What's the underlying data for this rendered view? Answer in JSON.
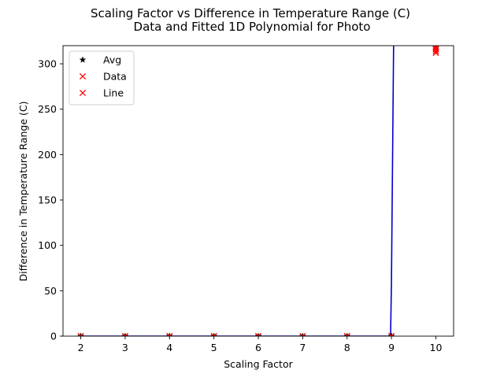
{
  "chart_data": {
    "type": "line",
    "title": "Scaling Factor vs Difference in Temperature Range (C)",
    "subtitle": "Data and Fitted 1D Polynomial for Photo",
    "xlabel": "Scaling Factor",
    "ylabel": "Difference in Temperature Range (C)",
    "xlim": [
      1.6,
      10.4
    ],
    "ylim": [
      0,
      320
    ],
    "xticks": [
      2,
      3,
      4,
      5,
      6,
      7,
      8,
      9,
      10
    ],
    "yticks": [
      0,
      50,
      100,
      150,
      200,
      250,
      300
    ],
    "grid": false,
    "legend_position": "top-left",
    "legend": [
      {
        "label": "Avg",
        "marker": "star",
        "color": "#000000"
      },
      {
        "label": "Data",
        "marker": "x",
        "color": "#ff0000"
      },
      {
        "label": "Line",
        "marker": "x",
        "color": "#ff0000"
      }
    ],
    "series": [
      {
        "legend": "Avg",
        "marker": "star",
        "color": "#000000",
        "x": [
          2,
          3,
          4,
          5,
          6,
          7,
          8,
          9
        ],
        "y": [
          0,
          0,
          0,
          0,
          0,
          0,
          0,
          0
        ]
      },
      {
        "legend": "Data",
        "marker": "x",
        "color": "#ff0000",
        "x": [
          2,
          3,
          4,
          5,
          6,
          7,
          8,
          9,
          10,
          10,
          10,
          10
        ],
        "y": [
          0,
          0,
          0,
          0,
          0,
          0,
          0,
          0,
          312,
          316,
          319,
          322
        ]
      },
      {
        "legend": "Line",
        "marker": "x",
        "color": "#ff0000",
        "x": [
          2,
          3,
          4,
          5,
          6,
          7,
          8,
          9,
          10,
          10,
          10
        ],
        "y": [
          0,
          0,
          0,
          0,
          0,
          0,
          0,
          0,
          314,
          318,
          321
        ]
      },
      {
        "kind": "fit",
        "color": "#0000cc",
        "x": [
          2,
          8.98,
          9.0,
          9.05
        ],
        "y": [
          0,
          0,
          60,
          330
        ]
      }
    ]
  }
}
